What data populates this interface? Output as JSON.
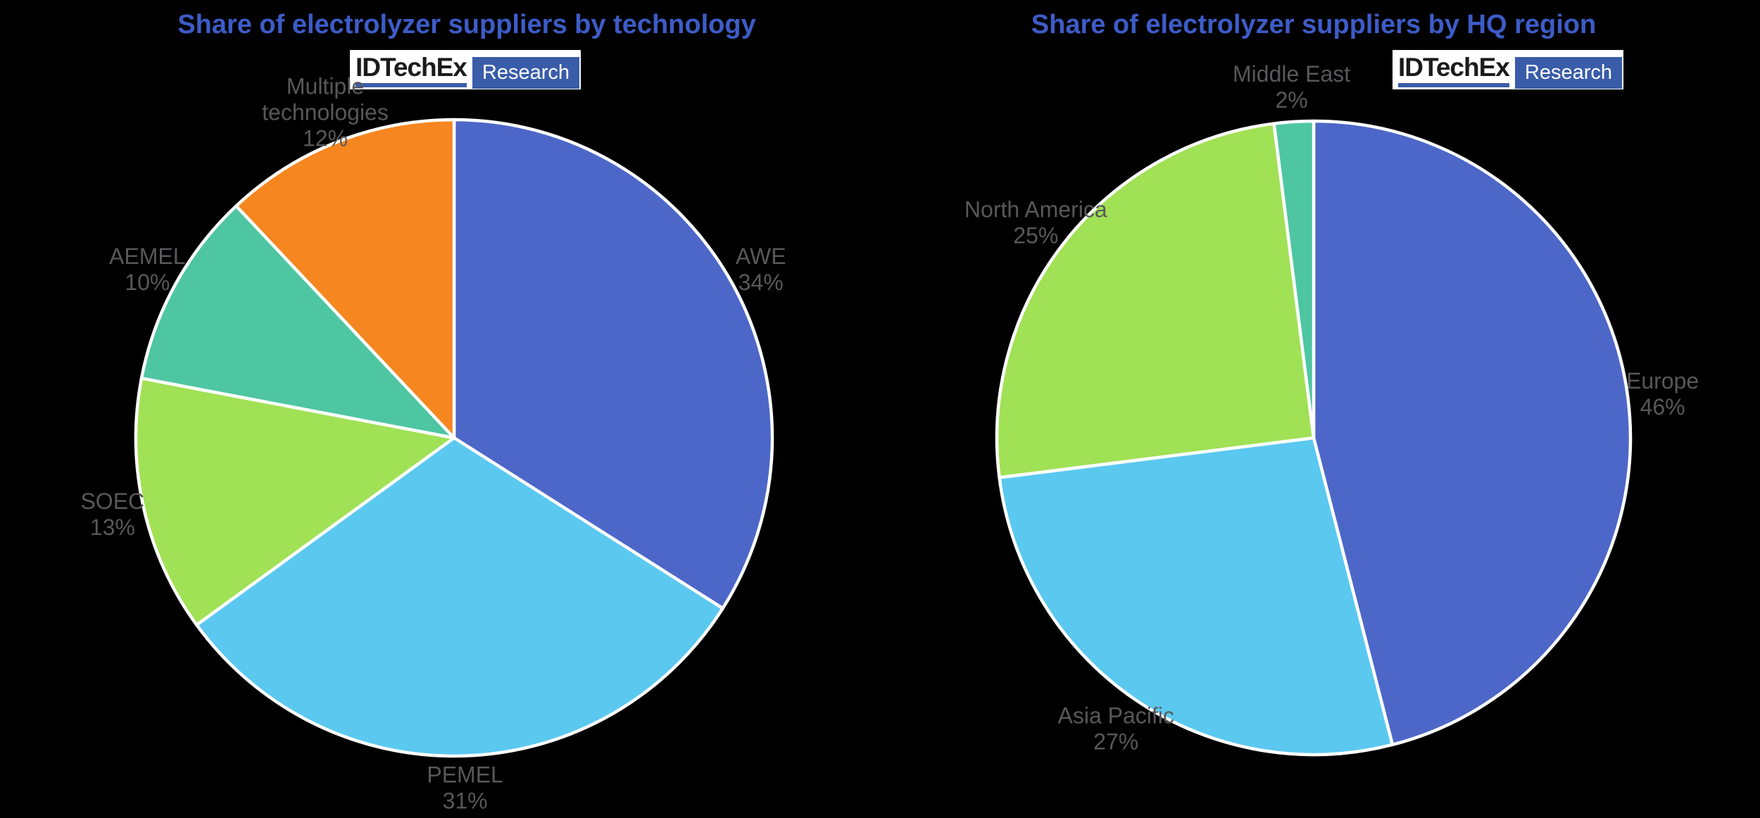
{
  "colors": {
    "background": "#000000",
    "title_blue": "#3D5CC8",
    "label_gray": "#58585A",
    "logo_blue": "#3A5DA9",
    "logo_text": "#1B1B1D",
    "wedge_edge": "#FFFFFF",
    "slice_blue": "#4D67C8",
    "slice_skyblue": "#5BC8F0",
    "slice_green": "#A0E155",
    "slice_teal": "#4EC6A2",
    "slice_orange": "#F6861F"
  },
  "logo": {
    "brand": "IDTechEx",
    "suffix": "Research"
  },
  "chart_data": [
    {
      "type": "pie",
      "title": "Share of electrolyzer suppliers by technology",
      "units": "%",
      "start_angle": "12 o'clock",
      "direction": "clockwise",
      "legend_position": "outside-labels",
      "slices": [
        {
          "label": "AWE",
          "value": 34,
          "pct_label": "34%",
          "color": "slice_blue",
          "label_lines": [
            "AWE"
          ]
        },
        {
          "label": "PEMEL",
          "value": 31,
          "pct_label": "31%",
          "color": "slice_skyblue",
          "label_lines": [
            "PEMEL"
          ]
        },
        {
          "label": "SOEC",
          "value": 13,
          "pct_label": "13%",
          "color": "slice_green",
          "label_lines": [
            "SOEC"
          ]
        },
        {
          "label": "AEMEL",
          "value": 10,
          "pct_label": "10%",
          "color": "slice_teal",
          "label_lines": [
            "AEMEL"
          ]
        },
        {
          "label": "Multiple technologies",
          "value": 12,
          "pct_label": "12%",
          "color": "slice_orange",
          "label_lines": [
            "Multiple",
            "technologies"
          ]
        }
      ]
    },
    {
      "type": "pie",
      "title": "Share of electrolyzer suppliers by HQ region",
      "units": "%",
      "start_angle": "12 o'clock",
      "direction": "clockwise",
      "legend_position": "outside-labels",
      "slices": [
        {
          "label": "Europe",
          "value": 46,
          "pct_label": "46%",
          "color": "slice_blue",
          "label_lines": [
            "Europe"
          ]
        },
        {
          "label": "Asia Pacific",
          "value": 27,
          "pct_label": "27%",
          "color": "slice_skyblue",
          "label_lines": [
            "Asia Pacific"
          ]
        },
        {
          "label": "North America",
          "value": 25,
          "pct_label": "25%",
          "color": "slice_green",
          "label_lines": [
            "North America"
          ]
        },
        {
          "label": "Middle East",
          "value": 2,
          "pct_label": "2%",
          "color": "slice_teal",
          "label_lines": [
            "Middle East"
          ]
        }
      ]
    }
  ]
}
